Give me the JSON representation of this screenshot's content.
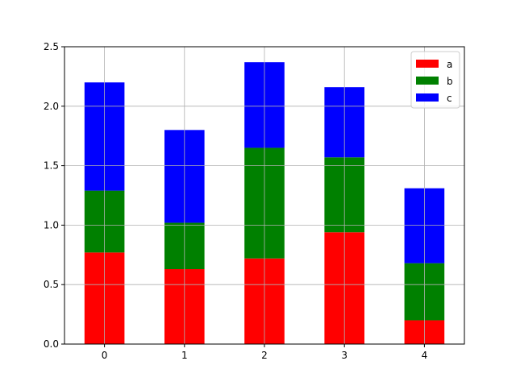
{
  "chart_data": {
    "type": "bar",
    "stacked": true,
    "title": "",
    "xlabel": "",
    "ylabel": "",
    "categories": [
      "0",
      "1",
      "2",
      "3",
      "4"
    ],
    "series": [
      {
        "name": "a",
        "color": "#ff0000",
        "values": [
          0.77,
          0.63,
          0.72,
          0.94,
          0.2
        ]
      },
      {
        "name": "b",
        "color": "#008000",
        "values": [
          0.52,
          0.39,
          0.93,
          0.63,
          0.48
        ]
      },
      {
        "name": "c",
        "color": "#0000ff",
        "values": [
          0.91,
          0.78,
          0.72,
          0.59,
          0.63
        ]
      }
    ],
    "ylim": [
      0,
      2.5
    ],
    "yticks": [
      "0.0",
      "0.5",
      "1.0",
      "1.5",
      "2.0",
      "2.5"
    ],
    "grid": true,
    "legend_position": "top-right"
  }
}
